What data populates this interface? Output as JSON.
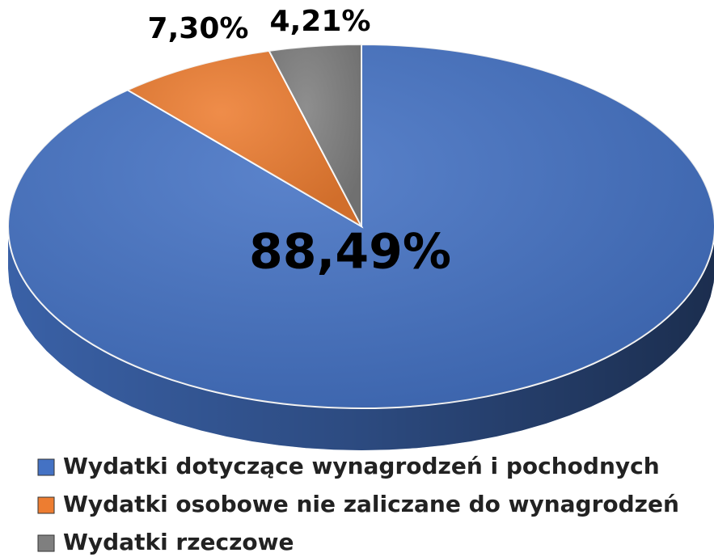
{
  "chart_data": {
    "type": "pie",
    "categories": [
      "Wydatki dotyczące wynagrodzeń i pochodnych",
      "Wydatki osobowe nie zaliczane do wynagrodzeń",
      "Wydatki rzeczowe"
    ],
    "values": [
      88.49,
      7.3,
      4.21
    ],
    "value_labels": [
      "88,49%",
      "7,30%",
      "4,21%"
    ],
    "colors": [
      "#4472c4",
      "#ed7d31",
      "#7f7f7f"
    ],
    "legend": "bottom"
  }
}
